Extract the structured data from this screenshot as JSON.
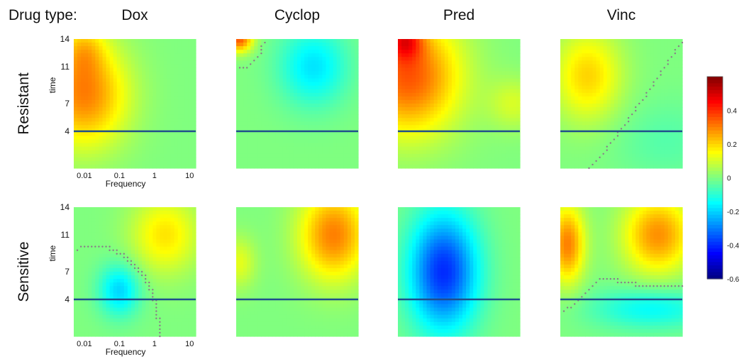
{
  "chart_data": {
    "type": "heatmap",
    "header_label": "Drug type:",
    "columns": [
      "Dox",
      "Cyclop",
      "Pred",
      "Vinc"
    ],
    "rows": [
      "Resistant",
      "Sensitive"
    ],
    "xlabel": "Frequency",
    "ylabel": "time",
    "x_ticks": [
      "0.01",
      "0.1",
      "1",
      "10"
    ],
    "x_scale": "log",
    "xlim": [
      0.005,
      15
    ],
    "y_ticks": [
      "4",
      "7",
      "11",
      "14"
    ],
    "ylim": [
      0,
      14
    ],
    "reference_line_y": 4,
    "colorbar": {
      "ticks": [
        "0.4",
        "0.2",
        "0",
        "-0.2",
        "-0.4",
        "-0.6"
      ],
      "range": [
        -0.6,
        0.6
      ],
      "colormap": "jet"
    },
    "colors": {
      "reference_line": "#1f4e8c",
      "contour": "#8a7a88"
    },
    "panels": [
      {
        "row": "Resistant",
        "column": "Dox",
        "blobs": [
          {
            "x": 0.01,
            "y": 8,
            "sx": 0.25,
            "sy": 4,
            "v": 0.3
          },
          {
            "x": 0.01,
            "y": 13,
            "sx": 0.12,
            "sy": 2,
            "v": 0.12
          }
        ]
      },
      {
        "row": "Resistant",
        "column": "Cyclop",
        "blobs": [
          {
            "x": 0.006,
            "y": 14,
            "sx": 0.08,
            "sy": 1,
            "v": 0.35
          },
          {
            "x": 0.8,
            "y": 11,
            "sx": 0.2,
            "sy": 3,
            "v": -0.18
          }
        ]
      },
      {
        "row": "Resistant",
        "column": "Pred",
        "blobs": [
          {
            "x": 0.01,
            "y": 10,
            "sx": 0.3,
            "sy": 4.5,
            "v": 0.35
          },
          {
            "x": 0.008,
            "y": 14,
            "sx": 0.1,
            "sy": 1.5,
            "v": 0.25
          },
          {
            "x": 10,
            "y": 7,
            "sx": 0.15,
            "sy": 2,
            "v": 0.1
          }
        ]
      },
      {
        "row": "Resistant",
        "column": "Vinc",
        "blobs": [
          {
            "x": 0.03,
            "y": 10,
            "sx": 0.2,
            "sy": 3.5,
            "v": 0.2
          },
          {
            "x": 5,
            "y": 3,
            "sx": 0.3,
            "sy": 3,
            "v": -0.05
          }
        ]
      },
      {
        "row": "Sensitive",
        "column": "Dox",
        "blobs": [
          {
            "x": 0.1,
            "y": 5,
            "sx": 0.12,
            "sy": 2,
            "v": -0.2
          },
          {
            "x": 2,
            "y": 11,
            "sx": 0.2,
            "sy": 3,
            "v": 0.18
          }
        ]
      },
      {
        "row": "Sensitive",
        "column": "Cyclop",
        "blobs": [
          {
            "x": 3,
            "y": 11,
            "sx": 0.2,
            "sy": 3.5,
            "v": 0.3
          },
          {
            "x": 0.006,
            "y": 8,
            "sx": 0.1,
            "sy": 2,
            "v": 0.12
          }
        ]
      },
      {
        "row": "Sensitive",
        "column": "Pred",
        "blobs": [
          {
            "x": 0.1,
            "y": 7,
            "sx": 0.2,
            "sy": 4.5,
            "v": -0.4
          }
        ]
      },
      {
        "row": "Sensitive",
        "column": "Vinc",
        "blobs": [
          {
            "x": 0.008,
            "y": 10,
            "sx": 0.1,
            "sy": 3,
            "v": 0.3
          },
          {
            "x": 3,
            "y": 11,
            "sx": 0.2,
            "sy": 3,
            "v": 0.28
          },
          {
            "x": 2,
            "y": 3,
            "sx": 0.35,
            "sy": 1.6,
            "v": -0.15
          }
        ]
      }
    ]
  }
}
